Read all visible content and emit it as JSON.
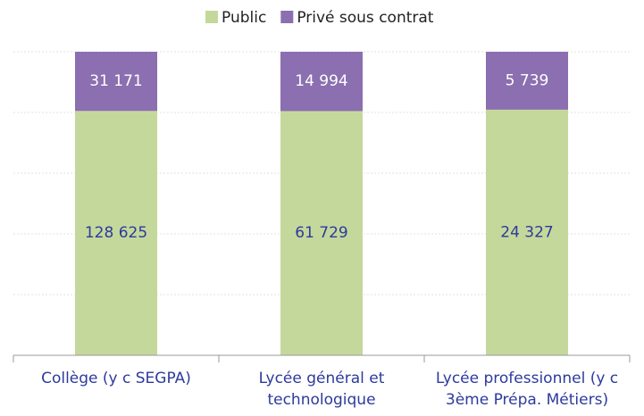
{
  "chart_data": {
    "type": "bar",
    "stacked": "percent",
    "categories": [
      "Collège (y c SEGPA)",
      "Lycée général et technologique",
      "Lycée professionnel (y c 3ème Prépa. Métiers)"
    ],
    "series": [
      {
        "name": "Public",
        "color": "#c5d89c",
        "values": [
          128625,
          61729,
          24327
        ],
        "value_labels": [
          "128 625",
          "61 729",
          "24 327"
        ]
      },
      {
        "name": "Privé sous contrat",
        "color": "#8b6fb0",
        "values": [
          31171,
          14994,
          5739
        ],
        "value_labels": [
          "31 171",
          "14 994",
          "5 739"
        ]
      }
    ],
    "ylim": [
      0,
      100
    ],
    "yticks": [
      0,
      20,
      40,
      60,
      80,
      100
    ],
    "grid": true,
    "legend": "top"
  }
}
